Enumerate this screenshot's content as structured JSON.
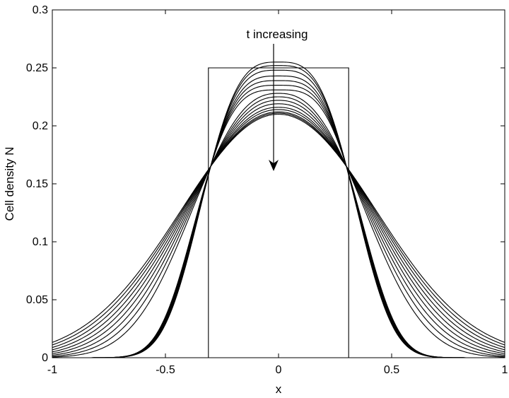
{
  "chart_data": {
    "type": "line",
    "title": "",
    "xlabel": "x",
    "ylabel": "Cell density N",
    "xlim": [
      -1,
      1
    ],
    "ylim": [
      0,
      0.3
    ],
    "x_ticks": [
      "-1",
      "-0.5",
      "0",
      "0.5",
      "1"
    ],
    "y_ticks": [
      "0",
      "0.05",
      "0.1",
      "0.15",
      "0.2",
      "0.25",
      "0.3"
    ],
    "grid": false,
    "annotation": "t increasing",
    "initial_condition": {
      "x_start": -0.31,
      "x_end": 0.31,
      "value": 0.25
    },
    "series_family": {
      "count": 16,
      "peak_values": [
        0.255,
        0.252,
        0.248,
        0.243,
        0.239,
        0.235,
        0.231,
        0.228,
        0.225,
        0.222,
        0.219,
        0.216,
        0.214,
        0.212,
        0.211,
        0.21
      ],
      "value_at_x_pm1": [
        0.0,
        0.0,
        0.0,
        0.0,
        0.0,
        0.0,
        0.0,
        0.0005,
        0.0012,
        0.0022,
        0.0035,
        0.005,
        0.0068,
        0.0088,
        0.011,
        0.0132
      ],
      "crossing_point": {
        "x": 0.3,
        "y": 0.165
      }
    },
    "colors": {
      "line": "#000000",
      "background": "#ffffff"
    }
  }
}
